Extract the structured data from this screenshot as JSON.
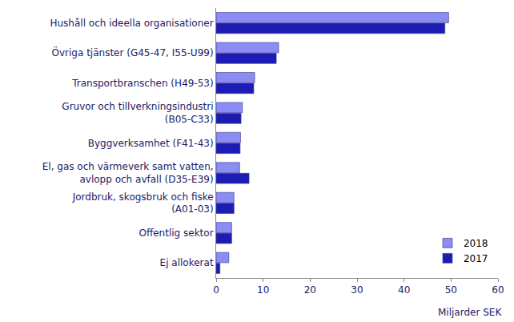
{
  "chart_data": {
    "type": "bar",
    "orientation": "horizontal",
    "xlabel": "Miljarder SEK",
    "categories": [
      "Hushåll och ideella organisationer",
      "Övriga tjänster (G45-47, I55-U99)",
      "Transportbranschen (H49-53)",
      "Gruvor och tillverkningsindustri (B05-C33)",
      "Byggverksamhet (F41-43)",
      "El, gas och värmeverk samt vatten, avlopp och avfall (D35-E39)",
      "Jordbruk, skogsbruk och fiske (A01-03)",
      "Offentlig sektor",
      "Ej allokerat"
    ],
    "series": [
      {
        "name": "2018",
        "color": "#8c8cf5",
        "values": [
          49.5,
          13.3,
          8.2,
          5.6,
          5.2,
          5.0,
          3.8,
          3.3,
          2.7
        ]
      },
      {
        "name": "2017",
        "color": "#1c1cb4",
        "values": [
          48.7,
          12.8,
          8.0,
          5.3,
          5.1,
          7.0,
          3.8,
          3.3,
          0.8
        ]
      }
    ],
    "xlim": [
      0,
      60
    ],
    "xticks": [
      0,
      10,
      20,
      30,
      40,
      50,
      60
    ],
    "grid": false,
    "legend": "lower right"
  }
}
